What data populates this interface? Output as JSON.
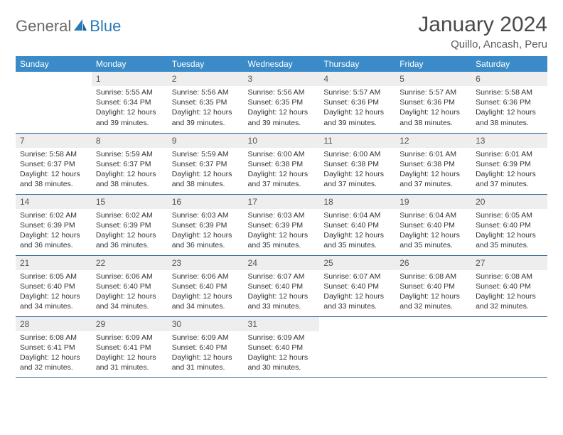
{
  "logo": {
    "text1": "General",
    "text2": "Blue"
  },
  "title": "January 2024",
  "location": "Quillo, Ancash, Peru",
  "colors": {
    "header_bg": "#3b8bc8",
    "header_text": "#ffffff",
    "daynum_bg": "#eeeeee",
    "row_border": "#3b6fa0",
    "logo_gray": "#6a6a6a",
    "logo_blue": "#2a7ab8"
  },
  "dayNames": [
    "Sunday",
    "Monday",
    "Tuesday",
    "Wednesday",
    "Thursday",
    "Friday",
    "Saturday"
  ],
  "weeks": [
    [
      null,
      {
        "n": "1",
        "sunrise": "5:55 AM",
        "sunset": "6:34 PM",
        "daylight": "12 hours and 39 minutes."
      },
      {
        "n": "2",
        "sunrise": "5:56 AM",
        "sunset": "6:35 PM",
        "daylight": "12 hours and 39 minutes."
      },
      {
        "n": "3",
        "sunrise": "5:56 AM",
        "sunset": "6:35 PM",
        "daylight": "12 hours and 39 minutes."
      },
      {
        "n": "4",
        "sunrise": "5:57 AM",
        "sunset": "6:36 PM",
        "daylight": "12 hours and 39 minutes."
      },
      {
        "n": "5",
        "sunrise": "5:57 AM",
        "sunset": "6:36 PM",
        "daylight": "12 hours and 38 minutes."
      },
      {
        "n": "6",
        "sunrise": "5:58 AM",
        "sunset": "6:36 PM",
        "daylight": "12 hours and 38 minutes."
      }
    ],
    [
      {
        "n": "7",
        "sunrise": "5:58 AM",
        "sunset": "6:37 PM",
        "daylight": "12 hours and 38 minutes."
      },
      {
        "n": "8",
        "sunrise": "5:59 AM",
        "sunset": "6:37 PM",
        "daylight": "12 hours and 38 minutes."
      },
      {
        "n": "9",
        "sunrise": "5:59 AM",
        "sunset": "6:37 PM",
        "daylight": "12 hours and 38 minutes."
      },
      {
        "n": "10",
        "sunrise": "6:00 AM",
        "sunset": "6:38 PM",
        "daylight": "12 hours and 37 minutes."
      },
      {
        "n": "11",
        "sunrise": "6:00 AM",
        "sunset": "6:38 PM",
        "daylight": "12 hours and 37 minutes."
      },
      {
        "n": "12",
        "sunrise": "6:01 AM",
        "sunset": "6:38 PM",
        "daylight": "12 hours and 37 minutes."
      },
      {
        "n": "13",
        "sunrise": "6:01 AM",
        "sunset": "6:39 PM",
        "daylight": "12 hours and 37 minutes."
      }
    ],
    [
      {
        "n": "14",
        "sunrise": "6:02 AM",
        "sunset": "6:39 PM",
        "daylight": "12 hours and 36 minutes."
      },
      {
        "n": "15",
        "sunrise": "6:02 AM",
        "sunset": "6:39 PM",
        "daylight": "12 hours and 36 minutes."
      },
      {
        "n": "16",
        "sunrise": "6:03 AM",
        "sunset": "6:39 PM",
        "daylight": "12 hours and 36 minutes."
      },
      {
        "n": "17",
        "sunrise": "6:03 AM",
        "sunset": "6:39 PM",
        "daylight": "12 hours and 35 minutes."
      },
      {
        "n": "18",
        "sunrise": "6:04 AM",
        "sunset": "6:40 PM",
        "daylight": "12 hours and 35 minutes."
      },
      {
        "n": "19",
        "sunrise": "6:04 AM",
        "sunset": "6:40 PM",
        "daylight": "12 hours and 35 minutes."
      },
      {
        "n": "20",
        "sunrise": "6:05 AM",
        "sunset": "6:40 PM",
        "daylight": "12 hours and 35 minutes."
      }
    ],
    [
      {
        "n": "21",
        "sunrise": "6:05 AM",
        "sunset": "6:40 PM",
        "daylight": "12 hours and 34 minutes."
      },
      {
        "n": "22",
        "sunrise": "6:06 AM",
        "sunset": "6:40 PM",
        "daylight": "12 hours and 34 minutes."
      },
      {
        "n": "23",
        "sunrise": "6:06 AM",
        "sunset": "6:40 PM",
        "daylight": "12 hours and 34 minutes."
      },
      {
        "n": "24",
        "sunrise": "6:07 AM",
        "sunset": "6:40 PM",
        "daylight": "12 hours and 33 minutes."
      },
      {
        "n": "25",
        "sunrise": "6:07 AM",
        "sunset": "6:40 PM",
        "daylight": "12 hours and 33 minutes."
      },
      {
        "n": "26",
        "sunrise": "6:08 AM",
        "sunset": "6:40 PM",
        "daylight": "12 hours and 32 minutes."
      },
      {
        "n": "27",
        "sunrise": "6:08 AM",
        "sunset": "6:40 PM",
        "daylight": "12 hours and 32 minutes."
      }
    ],
    [
      {
        "n": "28",
        "sunrise": "6:08 AM",
        "sunset": "6:41 PM",
        "daylight": "12 hours and 32 minutes."
      },
      {
        "n": "29",
        "sunrise": "6:09 AM",
        "sunset": "6:41 PM",
        "daylight": "12 hours and 31 minutes."
      },
      {
        "n": "30",
        "sunrise": "6:09 AM",
        "sunset": "6:40 PM",
        "daylight": "12 hours and 31 minutes."
      },
      {
        "n": "31",
        "sunrise": "6:09 AM",
        "sunset": "6:40 PM",
        "daylight": "12 hours and 30 minutes."
      },
      null,
      null,
      null
    ]
  ],
  "labels": {
    "sunrise": "Sunrise:",
    "sunset": "Sunset:",
    "daylight": "Daylight:"
  }
}
